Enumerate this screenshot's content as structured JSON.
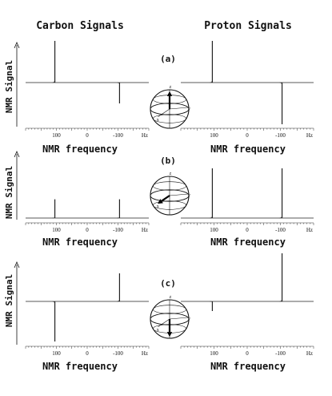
{
  "titles": {
    "left": "Carbon Signals",
    "right": "Proton Signals"
  },
  "ylabel": "NMR Signal",
  "xlabel": "NMR frequency",
  "xticks": {
    "labels": [
      "100",
      "0",
      "-100"
    ],
    "unit": "Hz"
  },
  "bloch_axis_labels": {
    "z": "z",
    "x": "x",
    "y": "y"
  },
  "colors": {
    "trace": "#222222",
    "arrow": "#000000"
  },
  "chart_data": [
    {
      "type": "line",
      "panel": "(a)",
      "nucleus": "Carbon",
      "xlim": [
        200,
        -200
      ],
      "xticks": [
        100,
        0,
        -100
      ],
      "xunit": "Hz",
      "xlabel": "NMR frequency",
      "ylabel": "NMR Signal",
      "ylim": [
        -1.2,
        1.2
      ],
      "peaks": [
        {
          "x": 105,
          "y": 1.0
        },
        {
          "x": -105,
          "y": -0.5
        }
      ]
    },
    {
      "type": "line",
      "panel": "(a)",
      "nucleus": "Proton",
      "xlim": [
        200,
        -200
      ],
      "xticks": [
        100,
        0,
        -100
      ],
      "xunit": "Hz",
      "xlabel": "NMR frequency",
      "ylim": [
        -1.2,
        1.2
      ],
      "peaks": [
        {
          "x": 105,
          "y": 1.0
        },
        {
          "x": -105,
          "y": -1.0
        }
      ]
    },
    {
      "type": "line",
      "panel": "(b)",
      "nucleus": "Carbon",
      "xlim": [
        200,
        -200
      ],
      "xticks": [
        100,
        0,
        -100
      ],
      "xunit": "Hz",
      "xlabel": "NMR frequency",
      "ylabel": "NMR Signal",
      "ylim": [
        0,
        1
      ],
      "peaks": [
        {
          "x": 105,
          "y": 0.26
        },
        {
          "x": -105,
          "y": 0.26
        }
      ]
    },
    {
      "type": "line",
      "panel": "(b)",
      "nucleus": "Proton",
      "xlim": [
        200,
        -200
      ],
      "xticks": [
        100,
        0,
        -100
      ],
      "xunit": "Hz",
      "xlabel": "NMR frequency",
      "ylim": [
        0,
        1
      ],
      "peaks": [
        {
          "x": 105,
          "y": 1.0
        },
        {
          "x": -105,
          "y": 1.0
        }
      ]
    },
    {
      "type": "line",
      "panel": "(c)",
      "nucleus": "Carbon",
      "xlim": [
        200,
        -200
      ],
      "xticks": [
        100,
        0,
        -100
      ],
      "xunit": "Hz",
      "xlabel": "NMR frequency",
      "ylabel": "NMR Signal",
      "ylim": [
        -1.2,
        1.2
      ],
      "peaks": [
        {
          "x": 105,
          "y": -1.0
        },
        {
          "x": -105,
          "y": 0.7
        }
      ]
    },
    {
      "type": "line",
      "panel": "(c)",
      "nucleus": "Proton",
      "xlim": [
        200,
        -200
      ],
      "xticks": [
        100,
        0,
        -100
      ],
      "xunit": "Hz",
      "xlabel": "NMR frequency",
      "ylim": [
        -1.2,
        1.2
      ],
      "peaks": [
        {
          "x": 105,
          "y": -0.2
        },
        {
          "x": -105,
          "y": 1.0
        }
      ]
    }
  ],
  "bloch_spheres": [
    {
      "panel": "(a)",
      "arrow": "+z"
    },
    {
      "panel": "(b)",
      "arrow": "+x"
    },
    {
      "panel": "(c)",
      "arrow": "-z"
    }
  ]
}
